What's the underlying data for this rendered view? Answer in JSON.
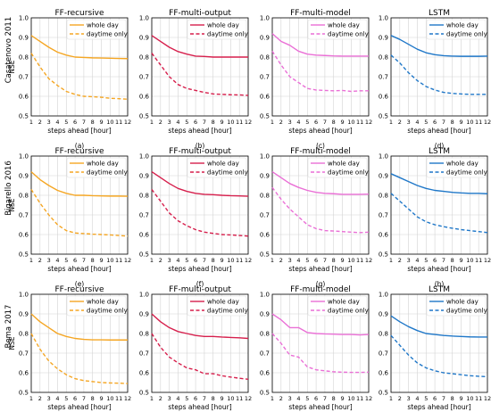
{
  "row_labels": [
    "Casatenovo 2011",
    "Bigarello 2016",
    "Bema 2017"
  ],
  "legend_labels": [
    "whole day",
    "daytime only"
  ],
  "column_colors": [
    "#f5a623",
    "#d61f4c",
    "#ea6fd6",
    "#1f77c8"
  ],
  "chart_data": [
    {
      "type": "line",
      "title": "FF-recursive",
      "panel_label": "(a)",
      "row": 0,
      "col": 0,
      "xlabel": "steps ahead [hour]",
      "ylabel": "NSE",
      "xlim": [
        1,
        12
      ],
      "ylim": [
        0.5,
        1.0
      ],
      "x": [
        1,
        2,
        3,
        4,
        5,
        6,
        7,
        8,
        9,
        10,
        11,
        12
      ],
      "x_ticks": [
        "1",
        "2",
        "3",
        "4",
        "5",
        "6",
        "7",
        "8",
        "9",
        "10",
        "11",
        "12"
      ],
      "y_ticks": [
        "0.5",
        "0.6",
        "0.7",
        "0.8",
        "0.9",
        "1.0"
      ],
      "legend": "top-right",
      "grid": true,
      "series": [
        {
          "name": "whole day",
          "style": "solid",
          "values": [
            0.91,
            0.88,
            0.85,
            0.825,
            0.81,
            0.8,
            0.798,
            0.796,
            0.795,
            0.794,
            0.793,
            0.792
          ]
        },
        {
          "name": "daytime only",
          "style": "dashed",
          "values": [
            0.82,
            0.75,
            0.69,
            0.655,
            0.625,
            0.61,
            0.6,
            0.598,
            0.595,
            0.59,
            0.588,
            0.585
          ]
        }
      ]
    },
    {
      "type": "line",
      "title": "FF-multi-output",
      "panel_label": "(b)",
      "row": 0,
      "col": 1,
      "xlabel": "steps ahead [hour]",
      "ylabel": "",
      "xlim": [
        1,
        12
      ],
      "ylim": [
        0.5,
        1.0
      ],
      "x": [
        1,
        2,
        3,
        4,
        5,
        6,
        7,
        8,
        9,
        10,
        11,
        12
      ],
      "x_ticks": [
        "1",
        "2",
        "3",
        "4",
        "5",
        "6",
        "7",
        "8",
        "9",
        "10",
        "11",
        "12"
      ],
      "y_ticks": [
        "0.5",
        "0.6",
        "0.7",
        "0.8",
        "0.9",
        "1.0"
      ],
      "legend": "top-right",
      "grid": true,
      "series": [
        {
          "name": "whole day",
          "style": "solid",
          "values": [
            0.91,
            0.88,
            0.85,
            0.828,
            0.815,
            0.805,
            0.803,
            0.8,
            0.8,
            0.8,
            0.8,
            0.8
          ]
        },
        {
          "name": "daytime only",
          "style": "dashed",
          "values": [
            0.82,
            0.76,
            0.7,
            0.66,
            0.64,
            0.63,
            0.62,
            0.612,
            0.61,
            0.608,
            0.607,
            0.605
          ]
        }
      ]
    },
    {
      "type": "line",
      "title": "FF-multi-model",
      "panel_label": "(c)",
      "row": 0,
      "col": 2,
      "xlabel": "steps ahead [hour]",
      "ylabel": "",
      "xlim": [
        1,
        12
      ],
      "ylim": [
        0.5,
        1.0
      ],
      "x": [
        1,
        2,
        3,
        4,
        5,
        6,
        7,
        8,
        9,
        10,
        11,
        12
      ],
      "x_ticks": [
        "1",
        "2",
        "3",
        "4",
        "5",
        "6",
        "7",
        "8",
        "9",
        "10",
        "11",
        "12"
      ],
      "y_ticks": [
        "0.5",
        "0.6",
        "0.7",
        "0.8",
        "0.9",
        "1.0"
      ],
      "legend": "top-right",
      "grid": true,
      "series": [
        {
          "name": "whole day",
          "style": "solid",
          "values": [
            0.92,
            0.88,
            0.86,
            0.83,
            0.815,
            0.81,
            0.808,
            0.806,
            0.805,
            0.805,
            0.805,
            0.805
          ]
        },
        {
          "name": "daytime only",
          "style": "dashed",
          "values": [
            0.83,
            0.76,
            0.7,
            0.67,
            0.64,
            0.632,
            0.63,
            0.628,
            0.63,
            0.625,
            0.628,
            0.628
          ]
        }
      ]
    },
    {
      "type": "line",
      "title": "LSTM",
      "panel_label": "(d)",
      "row": 0,
      "col": 3,
      "xlabel": "steps ahead [hour]",
      "ylabel": "",
      "xlim": [
        1,
        12
      ],
      "ylim": [
        0.5,
        1.0
      ],
      "x": [
        1,
        2,
        3,
        4,
        5,
        6,
        7,
        8,
        9,
        10,
        11,
        12
      ],
      "x_ticks": [
        "1",
        "2",
        "3",
        "4",
        "5",
        "6",
        "7",
        "8",
        "9",
        "10",
        "11",
        "12"
      ],
      "y_ticks": [
        "0.5",
        "0.6",
        "0.7",
        "0.8",
        "0.9",
        "1.0"
      ],
      "legend": "top-right",
      "grid": true,
      "series": [
        {
          "name": "whole day",
          "style": "solid",
          "values": [
            0.91,
            0.89,
            0.865,
            0.84,
            0.822,
            0.812,
            0.807,
            0.805,
            0.804,
            0.804,
            0.804,
            0.805
          ]
        },
        {
          "name": "daytime only",
          "style": "dashed",
          "values": [
            0.81,
            0.77,
            0.72,
            0.68,
            0.65,
            0.632,
            0.62,
            0.615,
            0.612,
            0.61,
            0.61,
            0.61
          ]
        }
      ]
    },
    {
      "type": "line",
      "title": "FF-recursive",
      "panel_label": "(e)",
      "row": 1,
      "col": 0,
      "xlabel": "steps ahead [hour]",
      "ylabel": "NSE",
      "xlim": [
        1,
        12
      ],
      "ylim": [
        0.5,
        1.0
      ],
      "x": [
        1,
        2,
        3,
        4,
        5,
        6,
        7,
        8,
        9,
        10,
        11,
        12
      ],
      "x_ticks": [
        "1",
        "2",
        "3",
        "4",
        "5",
        "6",
        "7",
        "8",
        "9",
        "10",
        "11",
        "12"
      ],
      "y_ticks": [
        "0.5",
        "0.6",
        "0.7",
        "0.8",
        "0.9",
        "1.0"
      ],
      "legend": "top-right",
      "grid": true,
      "series": [
        {
          "name": "whole day",
          "style": "solid",
          "values": [
            0.92,
            0.88,
            0.85,
            0.825,
            0.81,
            0.8,
            0.8,
            0.798,
            0.797,
            0.796,
            0.796,
            0.795
          ]
        },
        {
          "name": "daytime only",
          "style": "dashed",
          "values": [
            0.83,
            0.76,
            0.7,
            0.65,
            0.62,
            0.608,
            0.605,
            0.602,
            0.6,
            0.598,
            0.595,
            0.592
          ]
        }
      ]
    },
    {
      "type": "line",
      "title": "FF-multi-output",
      "panel_label": "(f)",
      "row": 1,
      "col": 1,
      "xlabel": "steps ahead [hour]",
      "ylabel": "",
      "xlim": [
        1,
        12
      ],
      "ylim": [
        0.5,
        1.0
      ],
      "x": [
        1,
        2,
        3,
        4,
        5,
        6,
        7,
        8,
        9,
        10,
        11,
        12
      ],
      "x_ticks": [
        "1",
        "2",
        "3",
        "4",
        "5",
        "6",
        "7",
        "8",
        "9",
        "10",
        "11",
        "12"
      ],
      "y_ticks": [
        "0.5",
        "0.6",
        "0.7",
        "0.8",
        "0.9",
        "1.0"
      ],
      "legend": "top-right",
      "grid": true,
      "series": [
        {
          "name": "whole day",
          "style": "solid",
          "values": [
            0.92,
            0.89,
            0.86,
            0.835,
            0.82,
            0.81,
            0.805,
            0.803,
            0.8,
            0.798,
            0.797,
            0.795
          ]
        },
        {
          "name": "daytime only",
          "style": "dashed",
          "values": [
            0.83,
            0.77,
            0.71,
            0.67,
            0.645,
            0.625,
            0.612,
            0.606,
            0.6,
            0.598,
            0.595,
            0.592
          ]
        }
      ]
    },
    {
      "type": "line",
      "title": "FF-multi-model",
      "panel_label": "(g)",
      "row": 1,
      "col": 2,
      "xlabel": "steps ahead [hour]",
      "ylabel": "",
      "xlim": [
        1,
        12
      ],
      "ylim": [
        0.5,
        1.0
      ],
      "x": [
        1,
        2,
        3,
        4,
        5,
        6,
        7,
        8,
        9,
        10,
        11,
        12
      ],
      "x_ticks": [
        "1",
        "2",
        "3",
        "4",
        "5",
        "6",
        "7",
        "8",
        "9",
        "10",
        "11",
        "12"
      ],
      "y_ticks": [
        "0.5",
        "0.6",
        "0.7",
        "0.8",
        "0.9",
        "1.0"
      ],
      "legend": "top-right",
      "grid": true,
      "series": [
        {
          "name": "whole day",
          "style": "solid",
          "values": [
            0.92,
            0.89,
            0.86,
            0.84,
            0.825,
            0.815,
            0.81,
            0.808,
            0.805,
            0.805,
            0.805,
            0.806
          ]
        },
        {
          "name": "daytime only",
          "style": "dashed",
          "values": [
            0.84,
            0.78,
            0.73,
            0.69,
            0.65,
            0.63,
            0.62,
            0.618,
            0.615,
            0.612,
            0.61,
            0.612
          ]
        }
      ]
    },
    {
      "type": "line",
      "title": "LSTM",
      "panel_label": "(h)",
      "row": 1,
      "col": 3,
      "xlabel": "steps ahead [hour]",
      "ylabel": "",
      "xlim": [
        1,
        12
      ],
      "ylim": [
        0.5,
        1.0
      ],
      "x": [
        1,
        2,
        3,
        4,
        5,
        6,
        7,
        8,
        9,
        10,
        11,
        12
      ],
      "x_ticks": [
        "1",
        "2",
        "3",
        "4",
        "5",
        "6",
        "7",
        "8",
        "9",
        "10",
        "11",
        "12"
      ],
      "y_ticks": [
        "0.5",
        "0.6",
        "0.7",
        "0.8",
        "0.9",
        "1.0"
      ],
      "legend": "top-right",
      "grid": true,
      "series": [
        {
          "name": "whole day",
          "style": "solid",
          "values": [
            0.91,
            0.89,
            0.87,
            0.85,
            0.835,
            0.825,
            0.82,
            0.815,
            0.812,
            0.81,
            0.81,
            0.808
          ]
        },
        {
          "name": "daytime only",
          "style": "dashed",
          "values": [
            0.81,
            0.77,
            0.73,
            0.69,
            0.665,
            0.65,
            0.64,
            0.632,
            0.625,
            0.62,
            0.615,
            0.61
          ]
        }
      ]
    },
    {
      "type": "line",
      "title": "FF-recursive",
      "panel_label": "(i)",
      "row": 2,
      "col": 0,
      "xlabel": "steps ahead [hour]",
      "ylabel": "NSE",
      "xlim": [
        1,
        12
      ],
      "ylim": [
        0.5,
        1.0
      ],
      "x": [
        1,
        2,
        3,
        4,
        5,
        6,
        7,
        8,
        9,
        10,
        11,
        12
      ],
      "x_ticks": [
        "1",
        "2",
        "3",
        "4",
        "5",
        "6",
        "7",
        "8",
        "9",
        "10",
        "11",
        "12"
      ],
      "y_ticks": [
        "0.5",
        "0.6",
        "0.7",
        "0.8",
        "0.9",
        "1.0"
      ],
      "legend": "top-right",
      "grid": true,
      "series": [
        {
          "name": "whole day",
          "style": "solid",
          "values": [
            0.9,
            0.86,
            0.83,
            0.8,
            0.785,
            0.775,
            0.77,
            0.768,
            0.768,
            0.767,
            0.767,
            0.767
          ]
        },
        {
          "name": "daytime only",
          "style": "dashed",
          "values": [
            0.8,
            0.72,
            0.66,
            0.62,
            0.59,
            0.57,
            0.56,
            0.555,
            0.55,
            0.548,
            0.547,
            0.545
          ]
        }
      ]
    },
    {
      "type": "line",
      "title": "FF-multi-output",
      "panel_label": "(j)",
      "row": 2,
      "col": 1,
      "xlabel": "steps ahead [hour]",
      "ylabel": "",
      "xlim": [
        1,
        12
      ],
      "ylim": [
        0.5,
        1.0
      ],
      "x": [
        1,
        2,
        3,
        4,
        5,
        6,
        7,
        8,
        9,
        10,
        11,
        12
      ],
      "x_ticks": [
        "1",
        "2",
        "3",
        "4",
        "5",
        "6",
        "7",
        "8",
        "9",
        "10",
        "11",
        "12"
      ],
      "y_ticks": [
        "0.5",
        "0.6",
        "0.7",
        "0.8",
        "0.9",
        "1.0"
      ],
      "legend": "top-right",
      "grid": true,
      "series": [
        {
          "name": "whole day",
          "style": "solid",
          "values": [
            0.9,
            0.86,
            0.83,
            0.81,
            0.8,
            0.79,
            0.785,
            0.785,
            0.782,
            0.78,
            0.778,
            0.775
          ]
        },
        {
          "name": "daytime only",
          "style": "dashed",
          "values": [
            0.8,
            0.73,
            0.68,
            0.65,
            0.625,
            0.615,
            0.595,
            0.595,
            0.585,
            0.578,
            0.572,
            0.567
          ]
        }
      ]
    },
    {
      "type": "line",
      "title": "FF-multi-model",
      "panel_label": "(k)",
      "row": 2,
      "col": 2,
      "xlabel": "steps ahead [hour]",
      "ylabel": "",
      "xlim": [
        1,
        12
      ],
      "ylim": [
        0.5,
        1.0
      ],
      "x": [
        1,
        2,
        3,
        4,
        5,
        6,
        7,
        8,
        9,
        10,
        11,
        12
      ],
      "x_ticks": [
        "1",
        "2",
        "3",
        "4",
        "5",
        "6",
        "7",
        "8",
        "9",
        "10",
        "11",
        "12"
      ],
      "y_ticks": [
        "0.5",
        "0.6",
        "0.7",
        "0.8",
        "0.9",
        "1.0"
      ],
      "legend": "top-right",
      "grid": true,
      "series": [
        {
          "name": "whole day",
          "style": "solid",
          "values": [
            0.9,
            0.87,
            0.83,
            0.83,
            0.805,
            0.8,
            0.798,
            0.797,
            0.795,
            0.795,
            0.793,
            0.795
          ]
        },
        {
          "name": "daytime only",
          "style": "dashed",
          "values": [
            0.8,
            0.75,
            0.69,
            0.68,
            0.63,
            0.615,
            0.61,
            0.605,
            0.603,
            0.602,
            0.602,
            0.603
          ]
        }
      ]
    },
    {
      "type": "line",
      "title": "LSTM",
      "panel_label": "(l)",
      "row": 2,
      "col": 3,
      "xlabel": "steps ahead [hour]",
      "ylabel": "",
      "xlim": [
        1,
        12
      ],
      "ylim": [
        0.5,
        1.0
      ],
      "x": [
        1,
        2,
        3,
        4,
        5,
        6,
        7,
        8,
        9,
        10,
        11,
        12
      ],
      "x_ticks": [
        "1",
        "2",
        "3",
        "4",
        "5",
        "6",
        "7",
        "8",
        "9",
        "10",
        "11",
        "12"
      ],
      "y_ticks": [
        "0.5",
        "0.6",
        "0.7",
        "0.8",
        "0.9",
        "1.0"
      ],
      "legend": "top-right",
      "grid": true,
      "series": [
        {
          "name": "whole day",
          "style": "solid",
          "values": [
            0.89,
            0.86,
            0.835,
            0.815,
            0.8,
            0.795,
            0.79,
            0.787,
            0.785,
            0.783,
            0.782,
            0.782
          ]
        },
        {
          "name": "daytime only",
          "style": "dashed",
          "values": [
            0.79,
            0.74,
            0.69,
            0.65,
            0.625,
            0.61,
            0.6,
            0.595,
            0.59,
            0.585,
            0.582,
            0.58
          ]
        }
      ]
    }
  ]
}
